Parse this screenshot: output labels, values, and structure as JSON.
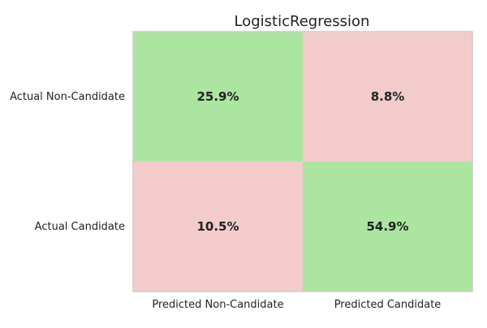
{
  "chart_data": {
    "type": "heatmap",
    "title": "LogisticRegression",
    "xlabel": "",
    "ylabel": "",
    "x_categories": [
      "Predicted Non-Candidate",
      "Predicted Candidate"
    ],
    "y_categories": [
      "Actual Non-Candidate",
      "Actual Candidate"
    ],
    "values": [
      [
        25.9,
        8.8
      ],
      [
        10.5,
        54.9
      ]
    ],
    "labels": [
      [
        "25.9%",
        "8.8%"
      ],
      [
        "10.5%",
        "54.9%"
      ]
    ],
    "cell_colors": [
      [
        "#abe5a0",
        "#f3cbcb"
      ],
      [
        "#f3cbcb",
        "#abe5a0"
      ]
    ],
    "colors": {
      "correct": "#abe5a0",
      "incorrect": "#f3cbcb",
      "frame": "#cccccc",
      "text": "#222222"
    },
    "grid": false,
    "legend": "none"
  }
}
